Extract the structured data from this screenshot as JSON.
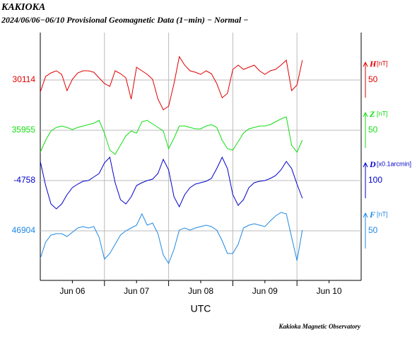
{
  "chart_data": {
    "type": "line",
    "title": "KAKIOKA",
    "subtitle": "2024/06/06−06/10  Provisional Geomagnetic Data (1−min)  − Normal −",
    "xlabel": "UTC",
    "footer": "Kakioka Magnetic Observatory",
    "xlim": [
      0,
      120
    ],
    "xticks": [
      {
        "value": 12,
        "label": "Jun 06"
      },
      {
        "value": 36,
        "label": "Jun 07"
      },
      {
        "value": 60,
        "label": "Jun 08"
      },
      {
        "value": 84,
        "label": "Jun 09"
      },
      {
        "value": 108,
        "label": "Jun 10"
      }
    ],
    "xgrid": [
      24,
      48,
      72,
      96
    ],
    "x": [
      0,
      2,
      4,
      6,
      8,
      10,
      12,
      14,
      16,
      18,
      20,
      22,
      24,
      26,
      28,
      30,
      32,
      34,
      36,
      38,
      40,
      42,
      44,
      46,
      48,
      50,
      52,
      54,
      56,
      58,
      60,
      62,
      64,
      66,
      68,
      70,
      72,
      74,
      76,
      78,
      80,
      82,
      84,
      86,
      88,
      90,
      92,
      94,
      96,
      98
    ],
    "series": [
      {
        "name": "H",
        "unit": "[nT]",
        "color": "#e00000",
        "ylim": [
          29831,
          30181
        ],
        "yticks": [
          30114
        ],
        "scale_bar": 50,
        "values": [
          30097,
          30119,
          30124,
          30127,
          30122,
          30099,
          30115,
          30124,
          30127,
          30127,
          30125,
          30117,
          30109,
          30105,
          30127,
          30123,
          30117,
          30087,
          30132,
          30127,
          30122,
          30115,
          30087,
          30072,
          30077,
          30109,
          30147,
          30135,
          30127,
          30125,
          30122,
          30127,
          30123,
          30109,
          30089,
          30095,
          30129,
          30135,
          30129,
          30132,
          30135,
          30127,
          30122,
          30127,
          30129,
          30135,
          30142,
          30099,
          30107,
          30142
        ]
      },
      {
        "name": "Z",
        "unit": "[nT]",
        "color": "#11dd11",
        "ylim": [
          35743,
          36093
        ],
        "yticks": [
          35955
        ],
        "scale_bar": 50,
        "values": [
          35924,
          35941,
          35954,
          35959,
          35961,
          35959,
          35956,
          35959,
          35961,
          35963,
          35965,
          35969,
          35951,
          35927,
          35921,
          35934,
          35947,
          35954,
          35951,
          35967,
          35969,
          35964,
          35959,
          35954,
          35929,
          35944,
          35961,
          35961,
          35959,
          35957,
          35957,
          35961,
          35963,
          35959,
          35941,
          35929,
          35927,
          35939,
          35951,
          35957,
          35959,
          35961,
          35961,
          35963,
          35967,
          35971,
          35974,
          35934,
          35924,
          35941
        ]
      },
      {
        "name": "D",
        "unit": "[x0.1arcmin]",
        "color": "#0000cc",
        "ylim": [
          -5040,
          -4340
        ],
        "yticks": [
          -4758
        ],
        "scale_bar": 100,
        "values": [
          -4704,
          -4772,
          -4824,
          -4838,
          -4824,
          -4798,
          -4778,
          -4768,
          -4760,
          -4758,
          -4748,
          -4738,
          -4708,
          -4692,
          -4764,
          -4812,
          -4824,
          -4804,
          -4772,
          -4764,
          -4758,
          -4754,
          -4738,
          -4698,
          -4728,
          -4804,
          -4832,
          -4798,
          -4778,
          -4768,
          -4764,
          -4760,
          -4752,
          -4724,
          -4692,
          -4724,
          -4798,
          -4828,
          -4812,
          -4778,
          -4764,
          -4760,
          -4758,
          -4752,
          -4744,
          -4728,
          -4704,
          -4724,
          -4768,
          -4808
        ]
      },
      {
        "name": "F",
        "unit": "[nT]",
        "color": "#1e88e5",
        "ylim": [
          46834,
          47184
        ],
        "yticks": [
          46904
        ],
        "scale_bar": 50,
        "values": [
          46865,
          46888,
          46898,
          46900,
          46900,
          46896,
          46902,
          46908,
          46910,
          46908,
          46910,
          46895,
          46864,
          46872,
          46885,
          46898,
          46904,
          46908,
          46912,
          46928,
          46912,
          46915,
          46900,
          46870,
          46858,
          46878,
          46905,
          46908,
          46905,
          46908,
          46910,
          46912,
          46910,
          46905,
          46890,
          46872,
          46872,
          46885,
          46908,
          46912,
          46914,
          46912,
          46910,
          46918,
          46925,
          46930,
          46928,
          46895,
          46862,
          46905
        ]
      }
    ]
  }
}
